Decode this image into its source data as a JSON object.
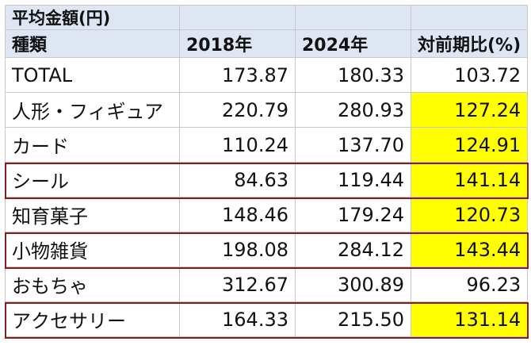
{
  "title": "平均金額(円)",
  "columns": [
    "種類",
    "2018年",
    "2024年",
    "対前期比(%)"
  ],
  "highlight_color": "#ffff00",
  "outline_color": "#8b1a1a",
  "rows": [
    {
      "name": "TOTAL",
      "y2018": "173.87",
      "y2024": "180.33",
      "ratio": "103.72",
      "highlight": false,
      "outlined": false
    },
    {
      "name": "人形・フィギュア",
      "y2018": "220.79",
      "y2024": "280.93",
      "ratio": "127.24",
      "highlight": true,
      "outlined": false
    },
    {
      "name": "カード",
      "y2018": "110.24",
      "y2024": "137.70",
      "ratio": "124.91",
      "highlight": true,
      "outlined": false
    },
    {
      "name": "シール",
      "y2018": "84.63",
      "y2024": "119.44",
      "ratio": "141.14",
      "highlight": true,
      "outlined": true
    },
    {
      "name": "知育菓子",
      "y2018": "148.46",
      "y2024": "179.24",
      "ratio": "120.73",
      "highlight": true,
      "outlined": false
    },
    {
      "name": "小物雑貨",
      "y2018": "198.08",
      "y2024": "284.12",
      "ratio": "143.44",
      "highlight": true,
      "outlined": true
    },
    {
      "name": "おもちゃ",
      "y2018": "312.67",
      "y2024": "300.89",
      "ratio": "96.23",
      "highlight": false,
      "outlined": false
    },
    {
      "name": "アクセサリー",
      "y2018": "164.33",
      "y2024": "215.50",
      "ratio": "131.14",
      "highlight": true,
      "outlined": true
    }
  ]
}
